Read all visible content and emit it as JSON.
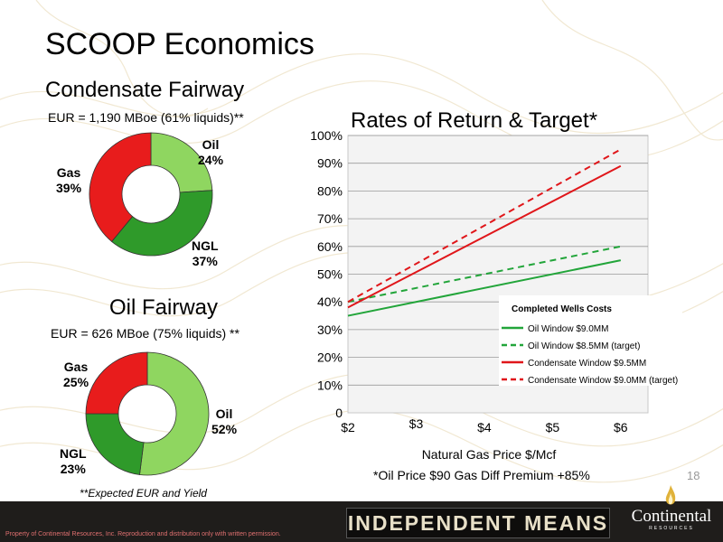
{
  "page": {
    "title": "SCOOP Economics",
    "page_number": "18",
    "footnote_left": "**Expected EUR and Yield",
    "footnote_right": "*Oil Price $90   Gas Diff Premium +85%",
    "footer": {
      "copyright": "Property of Continental Resources, Inc. Reproduction and distribution only with written permission.",
      "slogan": "INDEPENDENT MEANS",
      "logo_name": "Continental",
      "logo_sub": "RESOURCES"
    }
  },
  "chart_data": [
    {
      "type": "pie",
      "style": "donut",
      "title": "Condensate Fairway",
      "subtitle": "EUR = 1,190 MBoe (61% liquids)**",
      "slices": [
        {
          "label": "Oil",
          "value": 24,
          "display": "24%",
          "color": "#8fd660"
        },
        {
          "label": "NGL",
          "value": 37,
          "display": "37%",
          "color": "#2f9a2a"
        },
        {
          "label": "Gas",
          "value": 39,
          "display": "39%",
          "color": "#e81c1c"
        }
      ]
    },
    {
      "type": "pie",
      "style": "donut",
      "title": "Oil Fairway",
      "subtitle": "EUR = 626 MBoe (75% liquids) **",
      "slices": [
        {
          "label": "Oil",
          "value": 52,
          "display": "52%",
          "color": "#8fd660"
        },
        {
          "label": "NGL",
          "value": 23,
          "display": "23%",
          "color": "#2f9a2a"
        },
        {
          "label": "Gas",
          "value": 25,
          "display": "25%",
          "color": "#e81c1c"
        }
      ]
    },
    {
      "type": "line",
      "title": "Rates of Return & Target*",
      "xlabel": "Natural Gas Price $/Mcf",
      "ylabel": "",
      "x_ticks": [
        "$2",
        "$3",
        "$4",
        "$5",
        "$6"
      ],
      "y_ticks": [
        "0",
        "10%",
        "20%",
        "30%",
        "40%",
        "50%",
        "60%",
        "70%",
        "80%",
        "90%",
        "100%"
      ],
      "xlim": [
        2,
        6.4
      ],
      "ylim": [
        0,
        100
      ],
      "grid": true,
      "legend": {
        "title": "Completed Wells Costs",
        "placement": "center-right"
      },
      "series": [
        {
          "name": "Oil Window $9.0MM",
          "color": "#22a53a",
          "dash": false,
          "x": [
            2,
            6
          ],
          "y": [
            35,
            55
          ]
        },
        {
          "name": "Oil Window $8.5MM  (target)",
          "color": "#22a53a",
          "dash": true,
          "x": [
            2,
            6
          ],
          "y": [
            40,
            60
          ]
        },
        {
          "name": "Condensate Window $9.5MM",
          "color": "#e0161a",
          "dash": false,
          "x": [
            2,
            6
          ],
          "y": [
            38,
            89
          ]
        },
        {
          "name": "Condensate Window  $9.0MM (target)",
          "color": "#e0161a",
          "dash": true,
          "x": [
            2,
            6
          ],
          "y": [
            40,
            95
          ]
        }
      ]
    }
  ]
}
